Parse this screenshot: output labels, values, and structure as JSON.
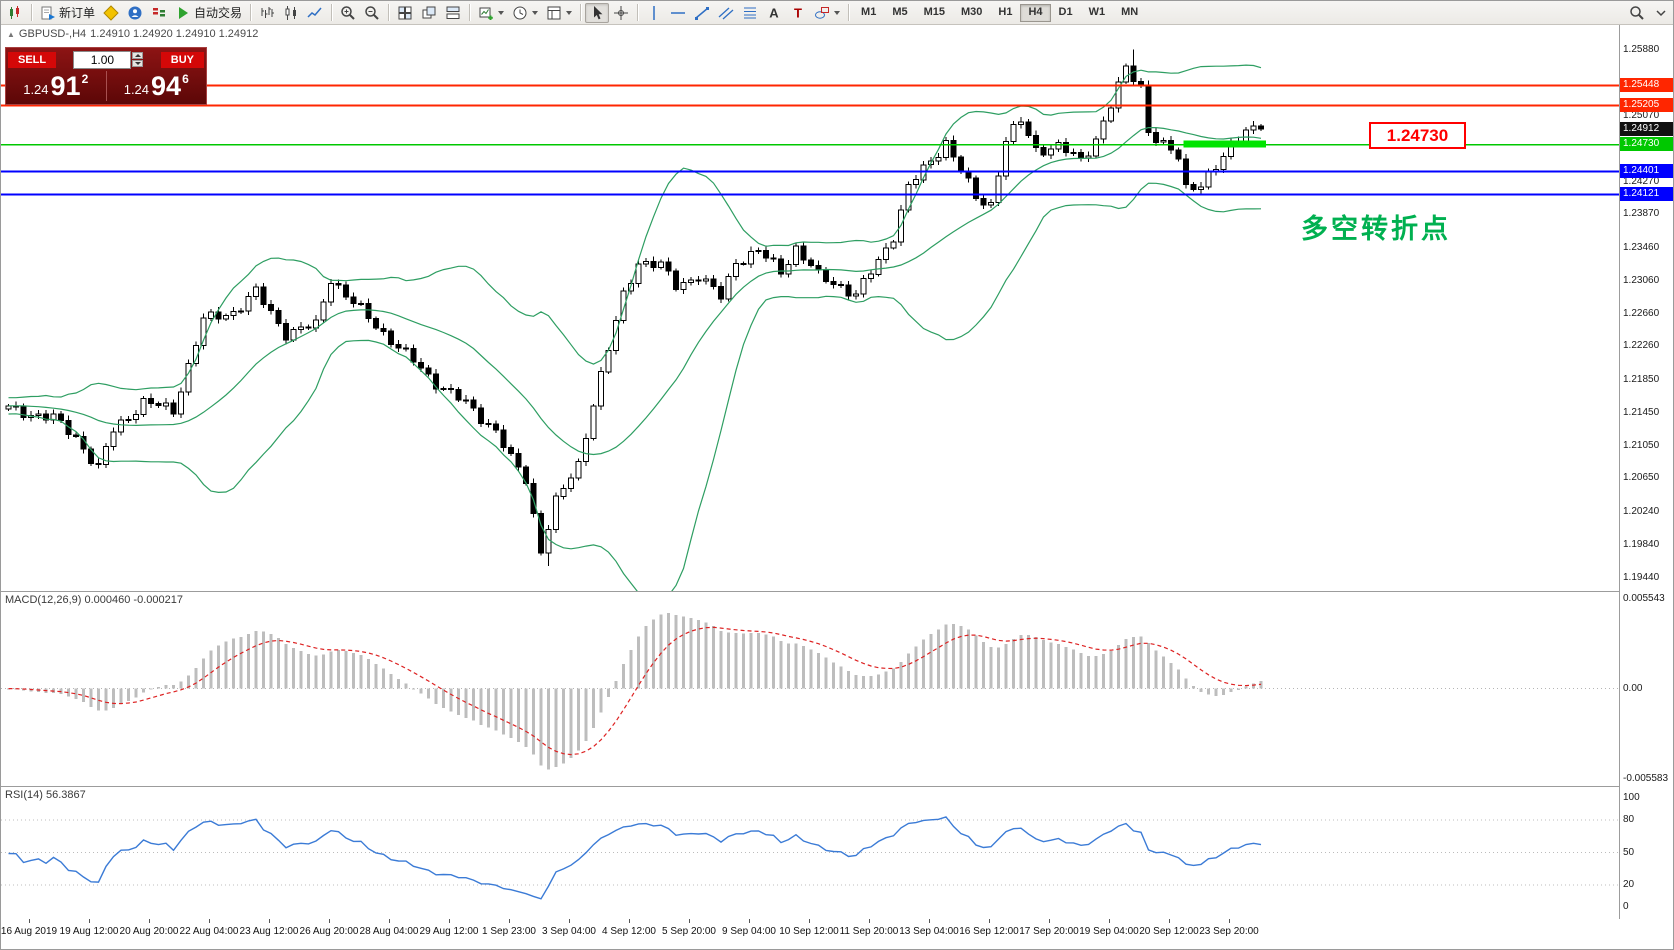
{
  "toolbar": {
    "groups": [
      {
        "name": "app",
        "items": [
          {
            "name": "app-logo",
            "icon": "candlestick-logo"
          }
        ]
      },
      {
        "name": "trade",
        "items": [
          {
            "name": "new-order",
            "icon": "new-order",
            "label": "新订单"
          },
          {
            "name": "metaeditor",
            "icon": "metaeditor"
          },
          {
            "name": "mql5-community",
            "icon": "community"
          },
          {
            "name": "market-depth",
            "icon": "depth"
          },
          {
            "name": "autotrading",
            "icon": "autotrading",
            "label": "自动交易"
          }
        ]
      },
      {
        "name": "chart-type",
        "items": [
          {
            "name": "bar-chart",
            "icon": "bars"
          },
          {
            "name": "candlestick-chart",
            "icon": "candles"
          },
          {
            "name": "line-chart",
            "icon": "line"
          }
        ]
      },
      {
        "name": "zoom",
        "items": [
          {
            "name": "zoom-in",
            "icon": "zoom-in"
          },
          {
            "name": "zoom-out",
            "icon": "zoom-out"
          }
        ]
      },
      {
        "name": "windows",
        "items": [
          {
            "name": "tile-windows",
            "icon": "tile"
          },
          {
            "name": "cascade-windows",
            "icon": "cascade"
          },
          {
            "name": "arrange-windows",
            "icon": "arrange"
          }
        ]
      },
      {
        "name": "new-objects",
        "items": [
          {
            "name": "new-chart",
            "icon": "new-chart",
            "dropdown": true
          },
          {
            "name": "chart-periods",
            "icon": "clock",
            "dropdown": true
          },
          {
            "name": "indicators",
            "icon": "template",
            "dropdown": true
          }
        ]
      },
      {
        "name": "cursor-tools",
        "items": [
          {
            "name": "cursor",
            "icon": "cursor",
            "active": true
          },
          {
            "name": "crosshair",
            "icon": "crosshair"
          }
        ]
      },
      {
        "name": "draw-tools",
        "items": [
          {
            "name": "vertical-line",
            "icon": "vline"
          },
          {
            "name": "horizontal-line",
            "icon": "hline"
          },
          {
            "name": "trendline",
            "icon": "tline"
          },
          {
            "name": "equidistant-channel",
            "icon": "channel"
          },
          {
            "name": "fibonacci",
            "icon": "fibo"
          },
          {
            "name": "text",
            "icon": "textA"
          },
          {
            "name": "text-label",
            "icon": "textT"
          },
          {
            "name": "shapes",
            "icon": "shapes",
            "dropdown": true
          }
        ]
      }
    ],
    "timeframes": [
      "M1",
      "M5",
      "M15",
      "M30",
      "H1",
      "H4",
      "D1",
      "W1",
      "MN"
    ],
    "active_timeframe": "H4"
  },
  "trade_panel": {
    "sell_label": "SELL",
    "buy_label": "BUY",
    "volume": "1.00",
    "sell_price_small": "1.24",
    "sell_price_big": "91",
    "sell_price_sup": "2",
    "buy_price_small": "1.24",
    "buy_price_big": "94",
    "buy_price_sup": "6"
  },
  "chart": {
    "info_symbol": "GBPUSD-,H4",
    "info_ohlc": "1.24910 1.24920 1.24910 1.24912",
    "collapse_arrow": "▲"
  },
  "annotations": {
    "price_box_text": "1.24730",
    "turning_point_text": "多空转折点"
  },
  "chart_data": {
    "type": "candlestick",
    "symbol": "GBPUSD-",
    "timeframe": "H4",
    "last_ohlc": {
      "open": 1.2491,
      "high": 1.2492,
      "low": 1.2491,
      "close": 1.24912
    },
    "visible_high": 1.2588,
    "visible_low": 1.1958,
    "bars_visible": 168,
    "warmup_bars": 40,
    "close_keyframes": [
      [
        -40,
        1.216
      ],
      [
        -25,
        1.2142
      ],
      [
        -12,
        1.2158
      ],
      [
        0,
        1.215
      ],
      [
        6,
        1.2138
      ],
      [
        9,
        1.2116
      ],
      [
        12,
        1.2076
      ],
      [
        14,
        1.2124
      ],
      [
        18,
        1.2158
      ],
      [
        22,
        1.2148
      ],
      [
        26,
        1.2258
      ],
      [
        30,
        1.2268
      ],
      [
        33,
        1.2292
      ],
      [
        37,
        1.2242
      ],
      [
        41,
        1.2252
      ],
      [
        43,
        1.231
      ],
      [
        45,
        1.2288
      ],
      [
        49,
        1.2252
      ],
      [
        53,
        1.2216
      ],
      [
        57,
        1.2182
      ],
      [
        61,
        1.2156
      ],
      [
        65,
        1.2124
      ],
      [
        67,
        1.2088
      ],
      [
        69,
        1.2064
      ],
      [
        71,
        1.1978
      ],
      [
        73,
        1.2036
      ],
      [
        76,
        1.2082
      ],
      [
        78,
        1.2158
      ],
      [
        80,
        1.2222
      ],
      [
        82,
        1.2288
      ],
      [
        84,
        1.233
      ],
      [
        87,
        1.2324
      ],
      [
        89,
        1.23
      ],
      [
        92,
        1.2312
      ],
      [
        95,
        1.2286
      ],
      [
        97,
        1.233
      ],
      [
        100,
        1.2342
      ],
      [
        103,
        1.2318
      ],
      [
        105,
        1.2346
      ],
      [
        108,
        1.2312
      ],
      [
        111,
        1.23
      ],
      [
        113,
        1.2288
      ],
      [
        116,
        1.233
      ],
      [
        118,
        1.2362
      ],
      [
        120,
        1.242
      ],
      [
        123,
        1.2452
      ],
      [
        125,
        1.2476
      ],
      [
        127,
        1.244
      ],
      [
        129,
        1.2406
      ],
      [
        131,
        1.24
      ],
      [
        133,
        1.2478
      ],
      [
        135,
        1.25
      ],
      [
        137,
        1.2466
      ],
      [
        140,
        1.247
      ],
      [
        143,
        1.2452
      ],
      [
        145,
        1.248
      ],
      [
        147,
        1.252
      ],
      [
        149,
        1.2564
      ],
      [
        151,
        1.2544
      ],
      [
        152,
        1.249
      ],
      [
        154,
        1.247
      ],
      [
        156,
        1.2456
      ],
      [
        157,
        1.242
      ],
      [
        159,
        1.2426
      ],
      [
        161,
        1.2442
      ],
      [
        163,
        1.247
      ],
      [
        165,
        1.2494
      ],
      [
        167,
        1.24912
      ]
    ],
    "levels": {
      "resistance_red": [
        1.25448,
        1.25205
      ],
      "pivot_green": 1.2473,
      "support_blue": [
        1.24401,
        1.24121
      ],
      "bid": 1.24912
    },
    "green_segment": {
      "price": 1.2473,
      "bar_start": 157,
      "bar_end": 168
    },
    "bollinger": {
      "period": 20,
      "deviation": 2
    },
    "price_ticks": [
      "1.25880",
      "1.25070",
      "1.24670",
      "1.24270",
      "1.23870",
      "1.23460",
      "1.23060",
      "1.22660",
      "1.22260",
      "1.21850",
      "1.21450",
      "1.21050",
      "1.20650",
      "1.20240",
      "1.19840",
      "1.19440"
    ],
    "time_ticks": [
      "16 Aug 2019",
      "19 Aug 12:00",
      "20 Aug 20:00",
      "22 Aug 04:00",
      "23 Aug 12:00",
      "26 Aug 20:00",
      "28 Aug 04:00",
      "29 Aug 12:00",
      "1 Sep 23:00",
      "3 Sep 04:00",
      "4 Sep 12:00",
      "5 Sep 20:00",
      "9 Sep 04:00",
      "10 Sep 12:00",
      "11 Sep 20:00",
      "13 Sep 04:00",
      "16 Sep 12:00",
      "17 Sep 20:00",
      "19 Sep 04:00",
      "20 Sep 12:00",
      "23 Sep 20:00"
    ],
    "macd": {
      "label": "MACD(12,26,9) 0.000460 -0.000217",
      "params": [
        12,
        26,
        9
      ],
      "scale_max": "0.005543",
      "scale_zero": "0.00",
      "scale_min": "-0.005583"
    },
    "rsi": {
      "label": "RSI(14) 56.3867",
      "period": 14,
      "current": 56.3867,
      "scale": [
        100,
        80,
        50,
        20,
        0
      ],
      "level_lines": [
        80,
        50,
        20
      ]
    }
  },
  "colors": {
    "bull": "#ffffff",
    "bear": "#000000",
    "candle_border": "#000000",
    "bollinger": "#2e9e62",
    "macd_histogram": "#bdbdbd",
    "macd_signal": "#dd2222",
    "rsi_line": "#3b7bd6",
    "red_level": "#ff2600",
    "green_level": "#00c800",
    "green_segment": "#00e400",
    "blue_level": "#0000ff",
    "bid_tag": "#111111"
  }
}
